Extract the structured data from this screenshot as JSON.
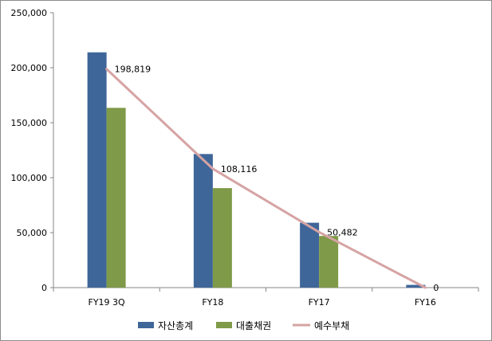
{
  "chart_data": {
    "type": "bar",
    "categories": [
      "FY19 3Q",
      "FY18",
      "FY17",
      "FY16"
    ],
    "ylim": [
      0,
      250000
    ],
    "yticks": [
      "0",
      "50,000",
      "100,000",
      "150,000",
      "200,000",
      "250,000"
    ],
    "series": [
      {
        "name": "자산총계",
        "kind": "bar",
        "color": "#3f6699",
        "values": [
          214000,
          121500,
          59000,
          2500
        ]
      },
      {
        "name": "대출채권",
        "kind": "bar",
        "color": "#7f9a48",
        "values": [
          163500,
          90500,
          47000,
          0
        ]
      },
      {
        "name": "예수부채",
        "kind": "line",
        "color": "#d6a3a3",
        "values": [
          198819,
          108116,
          50482,
          0
        ],
        "labels": [
          "198,819",
          "108,116",
          "50,482",
          "0"
        ]
      }
    ],
    "legend_position": "bottom"
  }
}
